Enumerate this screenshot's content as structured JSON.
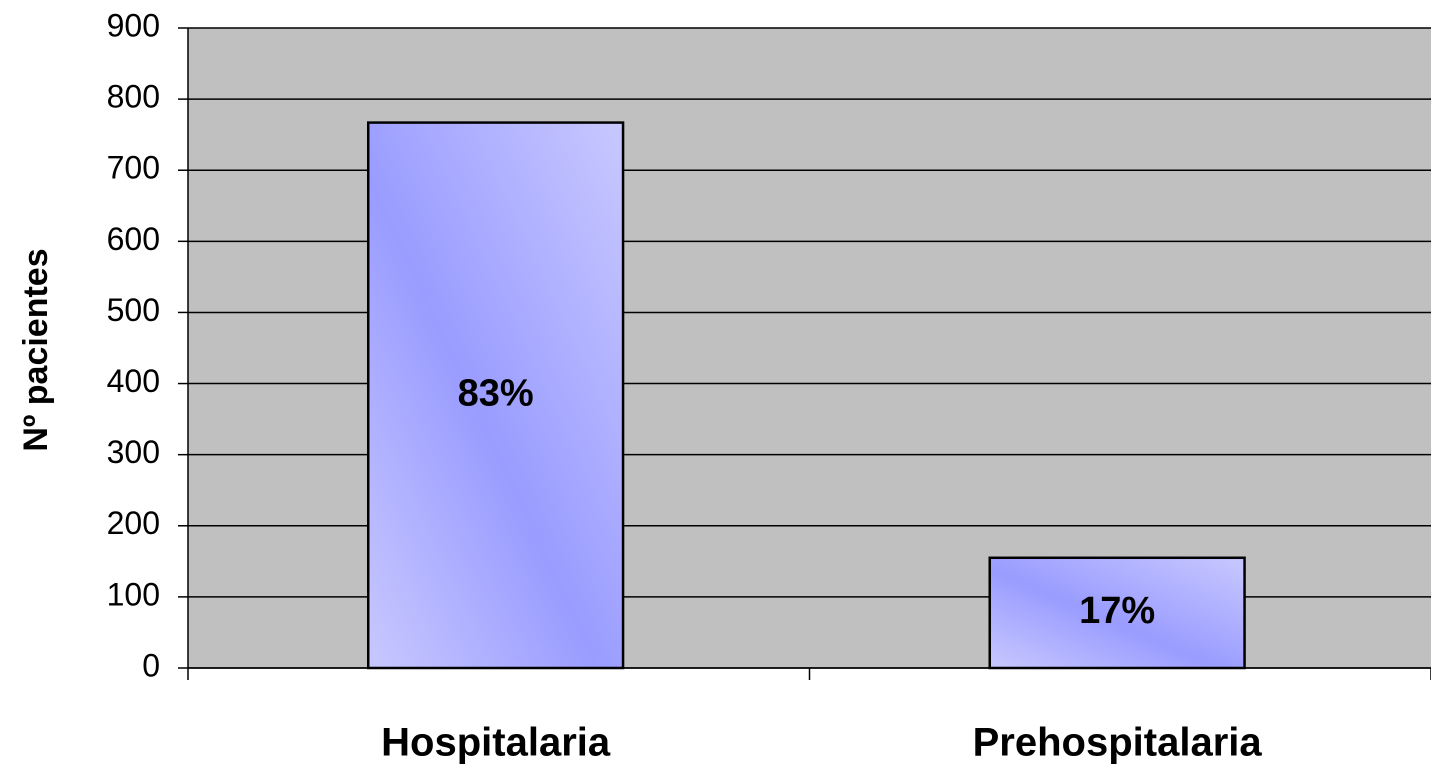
{
  "chart_data": {
    "type": "bar",
    "y_label": "Nº pacientes",
    "categories": [
      "Hospitalaria",
      "Prehospitalaria"
    ],
    "values": [
      767,
      155
    ],
    "value_labels": [
      "83%",
      "17%"
    ],
    "color": "#a0a4ff",
    "ylim": [
      0,
      900
    ],
    "yticks": [
      0,
      100,
      200,
      300,
      400,
      500,
      600,
      700,
      800,
      900
    ],
    "grid": true
  }
}
